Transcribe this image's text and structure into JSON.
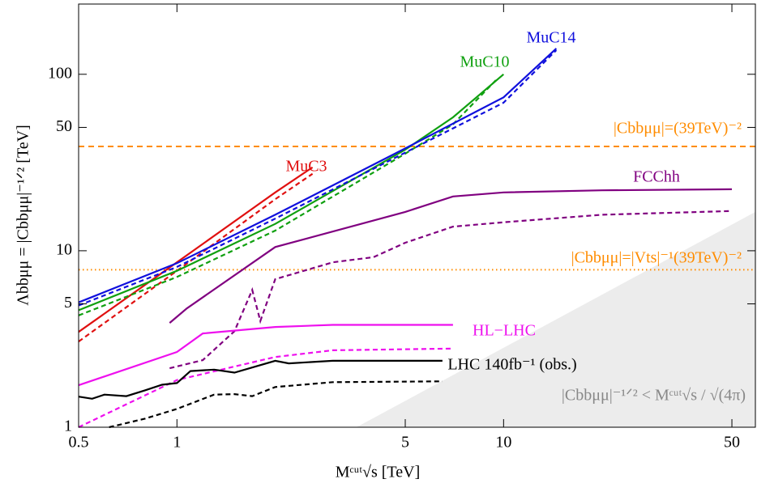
{
  "chart_data": {
    "type": "line",
    "log_x": true,
    "log_y": true,
    "x_label": "Mᶜᵘᵗ√s [TeV]",
    "y_label": "Λbbμμ = |Cbbμμ|⁻¹ᐟ² [TeV]",
    "xlim": [
      0.5,
      59
    ],
    "ylim": [
      1,
      250
    ],
    "xticks": [
      0.5,
      1,
      5,
      10,
      50
    ],
    "yticks": [
      1,
      5,
      10,
      50,
      100
    ],
    "series": [
      {
        "name": "MuC3",
        "color": "#e01010",
        "dash": false,
        "x": [
          0.5,
          1,
          2,
          2.6
        ],
        "values": [
          3.47,
          8.6,
          21.4,
          29.7
        ]
      },
      {
        "color": "#e01010",
        "dash": true,
        "x": [
          0.5,
          1,
          2,
          2.6
        ],
        "values": [
          3.06,
          7.7,
          19.6,
          27.3
        ]
      },
      {
        "name": "MuC10",
        "color": "#10a010",
        "dash": false,
        "x": [
          0.5,
          1,
          2,
          5,
          7,
          10
        ],
        "values": [
          4.6,
          7.7,
          14.2,
          37.4,
          57,
          100
        ]
      },
      {
        "color": "#10a010",
        "dash": true,
        "x": [
          0.5,
          1,
          2,
          5,
          7,
          9.6
        ],
        "values": [
          4.3,
          7.1,
          13,
          35.5,
          52,
          95
        ]
      },
      {
        "name": "MuC14",
        "color": "#1010dd",
        "dash": false,
        "x": [
          0.5,
          1,
          2,
          5,
          10,
          14.5
        ],
        "values": [
          5.1,
          8.5,
          16,
          38,
          74,
          140
        ]
      },
      {
        "color": "#1010dd",
        "dash": true,
        "x": [
          0.5,
          1,
          2,
          5,
          10,
          14.5
        ],
        "values": [
          4.9,
          8.1,
          15.2,
          36,
          69,
          137
        ]
      },
      {
        "name": "FCChh",
        "color": "#800080",
        "dash": false,
        "x": [
          0.95,
          1.07,
          2,
          5,
          7,
          10,
          20,
          50
        ],
        "values": [
          3.9,
          4.7,
          10.5,
          16.6,
          20.3,
          21.4,
          22,
          22.3
        ]
      },
      {
        "color": "#800080",
        "dash": true,
        "x": [
          0.95,
          1.2,
          1.5,
          1.7,
          1.8,
          2,
          3,
          4,
          5,
          7,
          10,
          20,
          50
        ],
        "values": [
          2.16,
          2.4,
          3.5,
          6.0,
          4.0,
          6.9,
          8.6,
          9.2,
          11.1,
          13.7,
          14.5,
          16,
          16.8
        ]
      },
      {
        "name": "HL−LHC",
        "color": "#ee10ee",
        "dash": false,
        "x": [
          0.5,
          1,
          1.2,
          2,
          3,
          7
        ],
        "values": [
          1.73,
          2.67,
          3.4,
          3.7,
          3.8,
          3.8
        ]
      },
      {
        "color": "#ee10ee",
        "dash": true,
        "x": [
          0.5,
          1,
          2,
          3,
          7
        ],
        "values": [
          1.0,
          1.85,
          2.5,
          2.73,
          2.79
        ]
      },
      {
        "name": "LHC 140fb⁻¹ (obs.)",
        "color": "#000000",
        "dash": false,
        "x": [
          0.5,
          0.55,
          0.6,
          0.7,
          0.8,
          0.9,
          1.0,
          1.1,
          1.3,
          1.5,
          2,
          2.2,
          3,
          6.5
        ],
        "values": [
          1.49,
          1.45,
          1.53,
          1.5,
          1.62,
          1.74,
          1.78,
          2.08,
          2.12,
          2.04,
          2.38,
          2.3,
          2.38,
          2.38
        ]
      },
      {
        "color": "#000000",
        "dash": true,
        "x": [
          0.62,
          0.8,
          1,
          1.3,
          1.5,
          1.7,
          2,
          3,
          6.5
        ],
        "values": [
          1.0,
          1.12,
          1.27,
          1.53,
          1.54,
          1.5,
          1.69,
          1.8,
          1.82
        ]
      }
    ],
    "reference_lines": [
      {
        "value": 39,
        "label": "|Cbbμμ|=(39TeV)⁻²",
        "style": "dashed",
        "color": "#ff8c00"
      },
      {
        "value": 7.8,
        "label": "|Cbbμμ|=|Vts|⁻¹(39TeV)⁻²",
        "style": "dotted",
        "color": "#ff8c00"
      }
    ],
    "shaded_region": {
      "label": "|Cbbμμ|⁻¹ᐟ² < Mᶜᵘᵗ√s / √(4π)",
      "x": [
        3.545,
        59
      ],
      "values": [
        1,
        16.6
      ],
      "color": "#ececec"
    }
  }
}
